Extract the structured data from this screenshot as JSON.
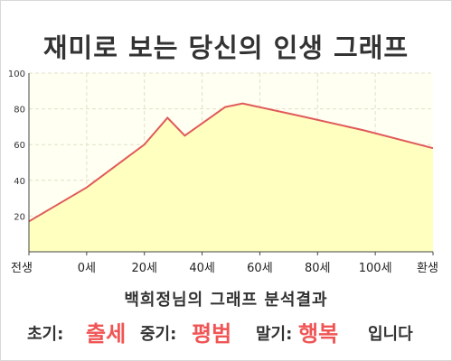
{
  "title": "재미로 보는 당신의 인생 그래프",
  "subtitle": "백희정님의 그래프 분석결과",
  "result": {
    "early_label": "초기:",
    "early_value": "출세",
    "mid_label": "중기:",
    "mid_value": "평범",
    "late_label": "말기:",
    "late_value": "행복",
    "ending": "입니다"
  },
  "colors": {
    "line": "#e05a5a",
    "fill": "#ffffbf",
    "plot_bg": "#fffff2",
    "grid": "#e0e0c8",
    "highlight": "#f05555",
    "text": "#333333"
  },
  "chart_data": {
    "type": "area",
    "title": "재미로 보는 당신의 인생 그래프",
    "x_tick_labels": [
      "전생",
      "0세",
      "20세",
      "40세",
      "60세",
      "80세",
      "100세",
      "환생"
    ],
    "y_ticks": [
      20,
      40,
      60,
      80,
      100
    ],
    "ylim": [
      0,
      100
    ],
    "grid": true,
    "series": [
      {
        "x": [
          "전생",
          "0세",
          "20세",
          "28세",
          "34세",
          "48세",
          "54세",
          "74세",
          "96세",
          "환생"
        ],
        "values": [
          17,
          36,
          60,
          75,
          65,
          81,
          83,
          76,
          68,
          58
        ]
      }
    ]
  }
}
